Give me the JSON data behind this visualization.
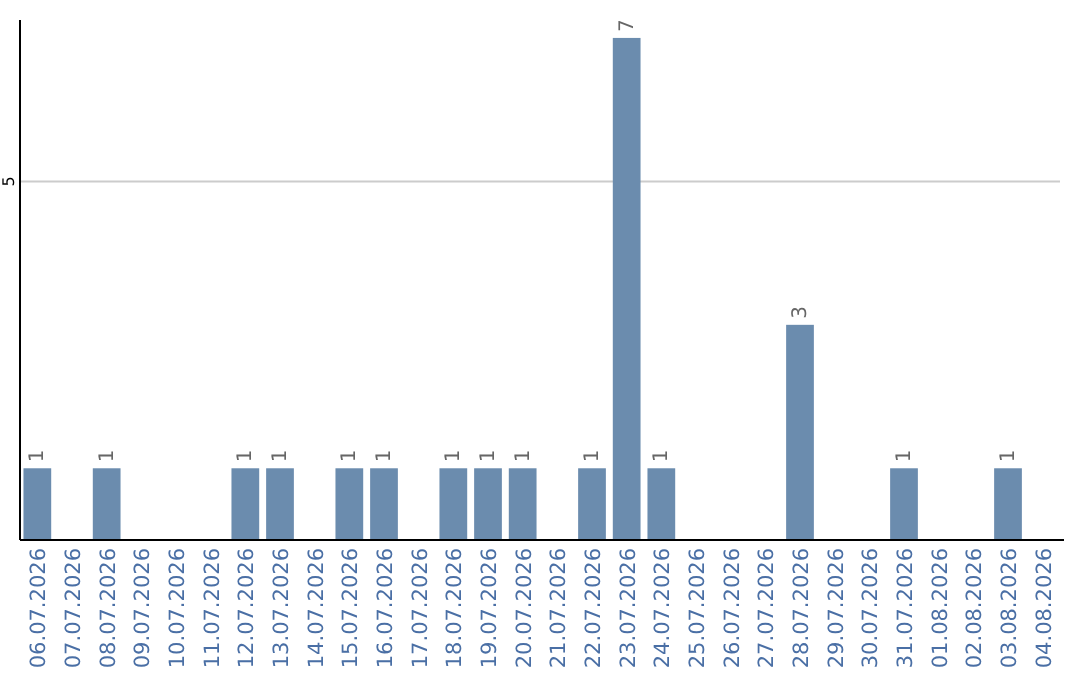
{
  "chart_data": {
    "type": "bar",
    "categories": [
      "06.07.2026",
      "07.07.2026",
      "08.07.2026",
      "09.07.2026",
      "10.07.2026",
      "11.07.2026",
      "12.07.2026",
      "13.07.2026",
      "14.07.2026",
      "15.07.2026",
      "16.07.2026",
      "17.07.2026",
      "18.07.2026",
      "19.07.2026",
      "20.07.2026",
      "21.07.2026",
      "22.07.2026",
      "23.07.2026",
      "24.07.2026",
      "25.07.2026",
      "26.07.2026",
      "27.07.2026",
      "28.07.2026",
      "29.07.2026",
      "30.07.2026",
      "31.07.2026",
      "01.08.2026",
      "02.08.2026",
      "03.08.2026",
      "04.08.2026"
    ],
    "values": [
      1,
      null,
      1,
      null,
      null,
      null,
      1,
      1,
      null,
      1,
      1,
      null,
      1,
      1,
      1,
      null,
      1,
      7,
      1,
      null,
      null,
      null,
      3,
      null,
      null,
      1,
      null,
      null,
      1,
      null
    ],
    "color": "#6b8cae",
    "ylim": [
      0,
      7.25
    ],
    "yticks": [
      5
    ],
    "grid": "y",
    "data_labels": true
  }
}
